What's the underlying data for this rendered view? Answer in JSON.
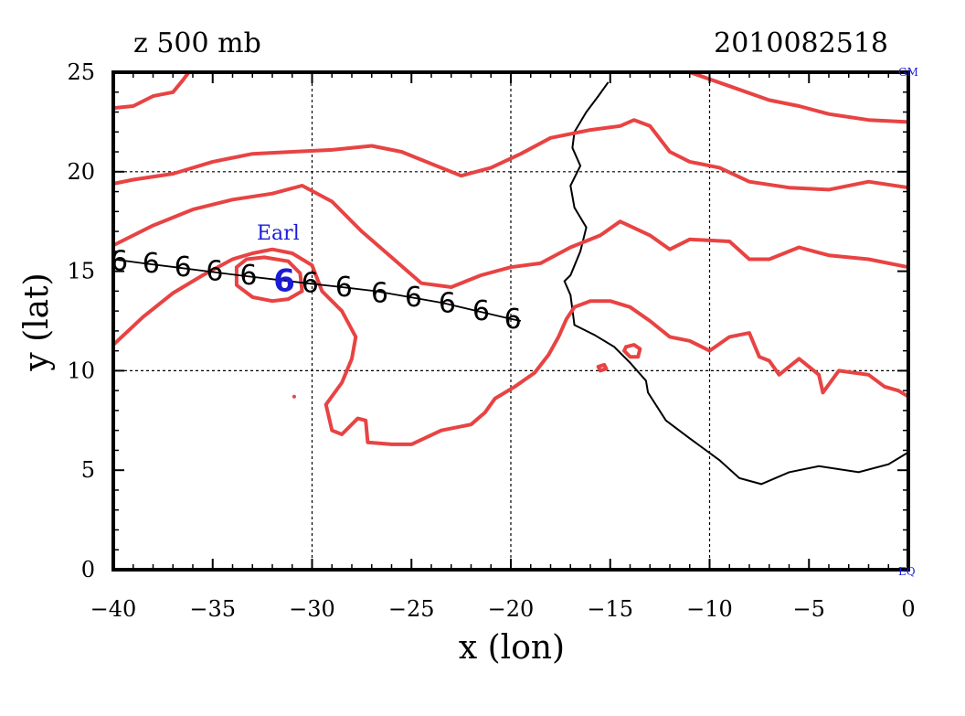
{
  "chart_data": {
    "type": "map",
    "title": "z 500 mb",
    "timestamp": "2010082518",
    "xlabel": "x (lon)",
    "ylabel": "y (lat)",
    "xlim": [
      -40,
      0
    ],
    "ylim": [
      0,
      25
    ],
    "x_ticks": [
      -40,
      -35,
      -30,
      -25,
      -20,
      -15,
      -10,
      -5,
      0
    ],
    "y_ticks": [
      0,
      5,
      10,
      15,
      20,
      25
    ],
    "grid": "dashed at 10-degree intervals",
    "corner_labels": {
      "top_right": "GM",
      "bottom_right": "EQ"
    },
    "storm": {
      "name": "Earl",
      "label_position": [
        -31.6,
        16.8
      ],
      "current_position": [
        -31.4,
        14.5
      ],
      "track": [
        [
          -40,
          15.6
        ],
        [
          -38.5,
          15.4
        ],
        [
          -36.9,
          15.2
        ],
        [
          -35.3,
          15.0
        ],
        [
          -33.7,
          14.8
        ],
        [
          -32.0,
          14.6
        ],
        [
          -30.3,
          14.4
        ],
        [
          -28.5,
          14.2
        ],
        [
          -26.8,
          14.0
        ],
        [
          -25.1,
          13.7
        ],
        [
          -23.4,
          13.4
        ],
        [
          -21.7,
          13.0
        ],
        [
          -20.0,
          12.6
        ],
        [
          -19.5,
          12.5
        ]
      ],
      "track_symbol_positions": [
        [
          -39.7,
          15.5
        ],
        [
          -38.1,
          15.4
        ],
        [
          -36.5,
          15.2
        ],
        [
          -34.9,
          15.0
        ],
        [
          -33.2,
          14.8
        ],
        [
          -30.1,
          14.4
        ],
        [
          -28.4,
          14.2
        ],
        [
          -26.6,
          13.9
        ],
        [
          -24.9,
          13.7
        ],
        [
          -23.2,
          13.4
        ],
        [
          -21.5,
          13.0
        ],
        [
          -19.9,
          12.6
        ]
      ],
      "symbol": "6"
    },
    "coastline": [
      [
        -15.1,
        24.5
      ],
      [
        -15.6,
        23.8
      ],
      [
        -16.2,
        23.0
      ],
      [
        -16.8,
        22.0
      ],
      [
        -16.9,
        21.2
      ],
      [
        -16.5,
        20.3
      ],
      [
        -17.0,
        19.3
      ],
      [
        -16.8,
        18.2
      ],
      [
        -16.2,
        17.2
      ],
      [
        -16.5,
        16.0
      ],
      [
        -17.0,
        14.8
      ],
      [
        -17.3,
        14.5
      ],
      [
        -17.0,
        13.8
      ],
      [
        -16.8,
        12.3
      ],
      [
        -15.8,
        11.8
      ],
      [
        -14.8,
        11.2
      ],
      [
        -14.0,
        10.4
      ],
      [
        -13.2,
        9.5
      ],
      [
        -13.1,
        8.9
      ],
      [
        -12.2,
        7.5
      ],
      [
        -11.0,
        6.6
      ],
      [
        -9.5,
        5.5
      ],
      [
        -8.5,
        4.6
      ],
      [
        -7.4,
        4.3
      ],
      [
        -6.0,
        4.9
      ],
      [
        -4.5,
        5.2
      ],
      [
        -2.5,
        4.9
      ],
      [
        -1.0,
        5.3
      ],
      [
        0,
        5.9
      ]
    ],
    "series": [
      {
        "contours": [
          [
            [
              -40,
              23.2
            ],
            [
              -39,
              23.3
            ],
            [
              -38,
              23.8
            ],
            [
              -37,
              24.0
            ],
            [
              -36.5,
              24.6
            ],
            [
              -36.2,
              25
            ]
          ],
          [
            [
              -40,
              19.4
            ],
            [
              -39,
              19.6
            ],
            [
              -37,
              19.9
            ],
            [
              -35,
              20.5
            ],
            [
              -33,
              20.9
            ],
            [
              -31,
              21.0
            ],
            [
              -29,
              21.1
            ],
            [
              -27,
              21.3
            ],
            [
              -25.5,
              21.0
            ],
            [
              -24,
              20.4
            ],
            [
              -22.5,
              19.8
            ],
            [
              -21,
              20.2
            ],
            [
              -19.5,
              20.9
            ],
            [
              -18,
              21.7
            ],
            [
              -16,
              22.1
            ],
            [
              -14.5,
              22.3
            ],
            [
              -13.8,
              22.6
            ],
            [
              -13.0,
              22.3
            ],
            [
              -12.0,
              21.0
            ],
            [
              -11.0,
              20.5
            ],
            [
              -9.5,
              20.2
            ],
            [
              -8,
              19.5
            ],
            [
              -6,
              19.2
            ],
            [
              -4,
              19.1
            ],
            [
              -2,
              19.5
            ],
            [
              0,
              19.2
            ]
          ],
          [
            [
              -40,
              16.3
            ],
            [
              -38,
              17.3
            ],
            [
              -36,
              18.1
            ],
            [
              -34,
              18.6
            ],
            [
              -32,
              18.9
            ],
            [
              -30.5,
              19.3
            ],
            [
              -29,
              18.5
            ],
            [
              -27.5,
              17.0
            ],
            [
              -26,
              15.7
            ],
            [
              -24.5,
              14.4
            ],
            [
              -23,
              14.2
            ],
            [
              -21.5,
              14.8
            ],
            [
              -20,
              15.2
            ],
            [
              -18.5,
              15.4
            ],
            [
              -17,
              16.2
            ],
            [
              -15.5,
              16.8
            ],
            [
              -14.5,
              17.5
            ],
            [
              -13,
              16.8
            ],
            [
              -12,
              16.1
            ],
            [
              -11,
              16.6
            ],
            [
              -9,
              16.5
            ],
            [
              -8,
              15.6
            ],
            [
              -7,
              15.6
            ],
            [
              -5.5,
              16.2
            ],
            [
              -4,
              15.8
            ],
            [
              -2,
              15.6
            ],
            [
              0,
              15.2
            ]
          ],
          [
            [
              -40,
              11.3
            ],
            [
              -38.5,
              12.7
            ],
            [
              -37,
              13.9
            ],
            [
              -35.5,
              14.8
            ],
            [
              -34,
              15.6
            ],
            [
              -33,
              15.9
            ],
            [
              -32,
              16.1
            ],
            [
              -31,
              15.9
            ],
            [
              -30,
              15.3
            ],
            [
              -29.5,
              14.0
            ],
            [
              -28.5,
              13.0
            ],
            [
              -27.8,
              11.7
            ],
            [
              -28.0,
              10.6
            ],
            [
              -28.5,
              9.4
            ],
            [
              -29.3,
              8.3
            ],
            [
              -29.0,
              7.0
            ],
            [
              -28.5,
              6.8
            ],
            [
              -27.7,
              7.6
            ],
            [
              -27.3,
              7.5
            ],
            [
              -27.2,
              6.4
            ],
            [
              -26.0,
              6.3
            ],
            [
              -25.0,
              6.3
            ],
            [
              -23.5,
              7.0
            ],
            [
              -22.0,
              7.3
            ],
            [
              -21.3,
              7.9
            ],
            [
              -20.8,
              8.6
            ],
            [
              -19.8,
              9.2
            ],
            [
              -18.8,
              9.9
            ],
            [
              -18.1,
              10.8
            ],
            [
              -17.6,
              11.7
            ],
            [
              -17.2,
              12.6
            ],
            [
              -16.8,
              13.2
            ],
            [
              -16.0,
              13.5
            ],
            [
              -15.0,
              13.5
            ],
            [
              -14.0,
              13.2
            ],
            [
              -13.0,
              12.5
            ],
            [
              -12.0,
              11.7
            ],
            [
              -11.0,
              11.5
            ],
            [
              -10.0,
              11.0
            ],
            [
              -9.0,
              11.7
            ],
            [
              -8.0,
              11.9
            ],
            [
              -7.5,
              10.7
            ],
            [
              -7.0,
              10.5
            ],
            [
              -6.5,
              9.8
            ],
            [
              -5.5,
              10.6
            ],
            [
              -4.5,
              9.8
            ],
            [
              -4.3,
              8.9
            ],
            [
              -3.5,
              10.0
            ],
            [
              -2.0,
              9.8
            ],
            [
              -1.2,
              9.2
            ],
            [
              -0.5,
              9.0
            ],
            [
              0,
              8.7
            ]
          ],
          [
            [
              -33.8,
              15.2
            ],
            [
              -33.8,
              14.3
            ],
            [
              -33.0,
              13.7
            ],
            [
              -32.0,
              13.5
            ],
            [
              -31.2,
              13.6
            ],
            [
              -30.5,
              14.0
            ],
            [
              -30.6,
              14.9
            ],
            [
              -31.2,
              15.5
            ],
            [
              -32.4,
              15.7
            ],
            [
              -33.3,
              15.6
            ],
            [
              -33.8,
              15.2
            ]
          ],
          [
            [
              -14.2,
              11.2
            ],
            [
              -13.8,
              11.3
            ],
            [
              -13.5,
              11.1
            ],
            [
              -13.6,
              10.7
            ],
            [
              -14.0,
              10.7
            ],
            [
              -14.3,
              11.0
            ],
            [
              -14.2,
              11.2
            ]
          ],
          [
            [
              -15.6,
              10.2
            ],
            [
              -15.3,
              10.3
            ],
            [
              -15.2,
              10.1
            ],
            [
              -15.5,
              10.0
            ],
            [
              -15.6,
              10.2
            ]
          ],
          [
            [
              -5,
              25
            ],
            [
              -0.5,
              25
            ]
          ],
          [
            [
              -13,
              25
            ],
            [
              -11.8,
              25
            ]
          ],
          [
            [
              -11.0,
              25
            ],
            [
              -9,
              24.3
            ],
            [
              -7,
              23.6
            ],
            [
              -5.5,
              23.3
            ],
            [
              -4,
              22.9
            ],
            [
              -2,
              22.6
            ],
            [
              0,
              22.5
            ]
          ]
        ],
        "name": "",
        "color": "#e84343"
      }
    ]
  }
}
